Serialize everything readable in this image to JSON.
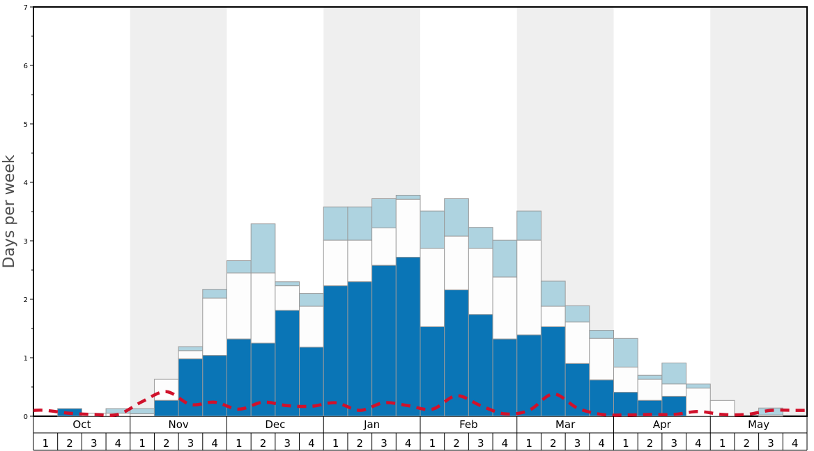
{
  "chart_data": {
    "type": "bar",
    "ylabel": "Days per week",
    "ylim": [
      0,
      7
    ],
    "yticks": [
      "0",
      "1",
      "2",
      "3",
      "4",
      "5",
      "6",
      "7"
    ],
    "months": [
      "Oct",
      "Nov",
      "Dec",
      "Jan",
      "Feb",
      "Mar",
      "Apr",
      "May"
    ],
    "weeks": [
      "1",
      "2",
      "3",
      "4"
    ],
    "stacked": true,
    "colors": {
      "bottom": "#0a75b6",
      "middle": "#fdfdfd",
      "top": "#aed3e0",
      "line": "#d0112b",
      "shade": "#efefef"
    },
    "series": [
      {
        "values": [
          0,
          0.13,
          0,
          0,
          0,
          0.27,
          0.98,
          1.04,
          1.32,
          1.25,
          1.81,
          1.18,
          2.23,
          2.3,
          2.58,
          2.72,
          1.53,
          2.16,
          1.74,
          1.32,
          1.39,
          1.53,
          0.9,
          0.62,
          0.41,
          0.27,
          0.34,
          0,
          0,
          0,
          0,
          0
        ]
      },
      {
        "values": [
          0,
          0,
          0.05,
          0.05,
          0.04,
          0.36,
          0.14,
          0.98,
          1.13,
          1.2,
          0.42,
          0.7,
          0.78,
          0.71,
          0.64,
          0.99,
          1.34,
          0.92,
          1.13,
          1.06,
          1.62,
          0.35,
          0.71,
          0.71,
          0.43,
          0.36,
          0.21,
          0.48,
          0.27,
          0,
          0.02,
          0
        ],
        "cumulative": [
          0,
          0.13,
          0.05,
          0.05,
          0.04,
          0.63,
          1.12,
          2.02,
          2.45,
          2.45,
          2.23,
          1.88,
          3.01,
          3.01,
          3.22,
          3.71,
          2.87,
          3.08,
          2.87,
          2.38,
          3.01,
          1.88,
          1.61,
          1.33,
          0.84,
          0.63,
          0.55,
          0.48,
          0.27,
          0,
          0.02,
          0
        ]
      },
      {
        "values": [
          0,
          0,
          0,
          0.08,
          0.09,
          0,
          0.07,
          0.15,
          0.21,
          0.84,
          0.07,
          0.22,
          0.57,
          0.57,
          0.5,
          0.07,
          0.64,
          0.64,
          0.36,
          0.63,
          0.5,
          0.43,
          0.28,
          0.14,
          0.49,
          0.07,
          0.36,
          0.07,
          0,
          0,
          0.12,
          0
        ],
        "cumulative": [
          0,
          0.13,
          0.05,
          0.13,
          0.13,
          0.63,
          1.19,
          2.17,
          2.66,
          3.29,
          2.3,
          2.1,
          3.58,
          3.58,
          3.72,
          3.78,
          3.51,
          3.72,
          3.23,
          3.01,
          3.51,
          2.31,
          1.89,
          1.47,
          1.33,
          0.7,
          0.91,
          0.55,
          0.27,
          0,
          0.14,
          0
        ]
      },
      {
        "style": "dashed-line",
        "values": [
          0.1,
          0.05,
          0.03,
          0.03,
          0.25,
          0.42,
          0.2,
          0.24,
          0.12,
          0.24,
          0.18,
          0.17,
          0.23,
          0.1,
          0.23,
          0.18,
          0.12,
          0.35,
          0.18,
          0.04,
          0.1,
          0.38,
          0.14,
          0.03,
          0.02,
          0.03,
          0.03,
          0.08,
          0.03,
          0.03,
          0.1,
          0.1
        ]
      }
    ]
  }
}
